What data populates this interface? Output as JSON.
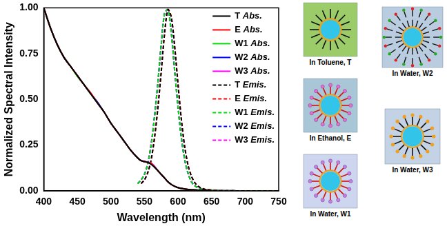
{
  "chart_data": {
    "type": "line",
    "x_label": "Wavelength (nm)",
    "y_label": "Normalized Spectral Intensity",
    "x": [
      400,
      410,
      420,
      430,
      440,
      450,
      460,
      470,
      480,
      490,
      500,
      510,
      520,
      530,
      540,
      545,
      550,
      555,
      560,
      565,
      570,
      575,
      580,
      585,
      590,
      595,
      600,
      605,
      610,
      615,
      620,
      625,
      630,
      635,
      640,
      650,
      660,
      670,
      680,
      690,
      700,
      710,
      720,
      730,
      740,
      750
    ],
    "xlim": [
      400,
      750
    ],
    "xticks": [
      400,
      450,
      500,
      550,
      600,
      650,
      700,
      750
    ],
    "ylim": [
      0,
      1
    ],
    "yticks": [
      {
        "value": 0,
        "label": "0.00"
      },
      {
        "value": 0.25,
        "label": "0.25"
      },
      {
        "value": 0.5,
        "label": "0.50"
      },
      {
        "value": 0.75,
        "label": "0.75"
      },
      {
        "value": 1,
        "label": "1.00"
      }
    ],
    "grid": false,
    "legend": "upper right",
    "series": [
      {
        "name": "T Abs.",
        "color": "#000000",
        "line_style": "solid",
        "values": [
          1.0,
          0.89,
          0.8,
          0.73,
          0.68,
          0.63,
          0.58,
          0.53,
          0.48,
          0.43,
          0.37,
          0.32,
          0.27,
          0.22,
          0.18,
          0.165,
          0.16,
          0.155,
          0.145,
          0.13,
          0.11,
          0.09,
          0.07,
          0.05,
          0.035,
          0.025,
          0.018,
          0.013,
          0.01,
          0.008,
          0.006,
          0.005,
          0.004,
          0.004,
          0.003,
          0.003,
          null,
          null,
          null,
          null,
          null,
          null,
          null,
          null,
          null,
          null
        ]
      },
      {
        "name": "E Abs.",
        "color": "#ff0000",
        "line_style": "solid",
        "values": [
          1.0,
          0.89,
          0.8,
          0.73,
          0.68,
          0.63,
          0.58,
          0.535,
          0.48,
          0.43,
          0.37,
          0.32,
          0.27,
          0.22,
          0.18,
          0.165,
          0.16,
          0.155,
          0.15,
          0.13,
          0.11,
          0.09,
          0.07,
          0.05,
          0.035,
          0.025,
          0.018,
          0.013,
          0.01,
          0.008,
          0.006,
          0.005,
          0.004,
          0.004,
          0.003,
          0.003,
          null,
          null,
          null,
          null,
          null,
          null,
          null,
          null,
          null,
          null
        ]
      },
      {
        "name": "W1 Abs.",
        "color": "#00dd00",
        "line_style": "solid",
        "values": [
          1.0,
          0.89,
          0.8,
          0.73,
          0.68,
          0.625,
          0.58,
          0.53,
          0.48,
          0.43,
          0.37,
          0.32,
          0.27,
          0.22,
          0.18,
          0.165,
          0.16,
          0.155,
          0.148,
          0.13,
          0.11,
          0.09,
          0.07,
          0.05,
          0.035,
          0.025,
          0.018,
          0.013,
          0.01,
          0.008,
          0.006,
          0.005,
          0.004,
          0.004,
          0.003,
          0.003,
          null,
          null,
          null,
          null,
          null,
          null,
          null,
          null,
          null,
          null
        ]
      },
      {
        "name": "W2 Abs.",
        "color": "#0000ff",
        "line_style": "solid",
        "values": [
          1.0,
          0.89,
          0.8,
          0.73,
          0.68,
          0.63,
          0.58,
          0.53,
          0.485,
          0.43,
          0.37,
          0.32,
          0.27,
          0.22,
          0.18,
          0.165,
          0.16,
          0.158,
          0.145,
          0.13,
          0.11,
          0.09,
          0.07,
          0.05,
          0.035,
          0.025,
          0.018,
          0.013,
          0.01,
          0.008,
          0.006,
          0.005,
          0.004,
          0.004,
          0.003,
          0.003,
          null,
          null,
          null,
          null,
          null,
          null,
          null,
          null,
          null,
          null
        ]
      },
      {
        "name": "W3 Abs.",
        "color": "#ff00ff",
        "line_style": "solid",
        "values": [
          1.0,
          0.89,
          0.8,
          0.73,
          0.68,
          0.63,
          0.58,
          0.53,
          0.48,
          0.43,
          0.37,
          0.32,
          0.27,
          0.22,
          0.18,
          0.165,
          0.163,
          0.155,
          0.152,
          0.135,
          0.11,
          0.09,
          0.07,
          0.05,
          0.035,
          0.025,
          0.018,
          0.013,
          0.01,
          0.008,
          0.006,
          0.005,
          0.004,
          0.004,
          0.003,
          0.003,
          null,
          null,
          null,
          null,
          null,
          null,
          null,
          null,
          null,
          null
        ]
      },
      {
        "name": "T Emis.",
        "color": "#000000",
        "line_style": "dashed",
        "values": [
          null,
          null,
          null,
          null,
          null,
          null,
          null,
          null,
          null,
          null,
          null,
          null,
          null,
          null,
          null,
          0.04,
          0.06,
          0.1,
          0.17,
          0.29,
          0.45,
          0.65,
          0.86,
          0.99,
          0.95,
          0.79,
          0.58,
          0.39,
          0.24,
          0.14,
          0.08,
          0.045,
          0.025,
          0.015,
          0.009,
          0.004,
          0.002,
          0.001,
          0.001,
          0,
          0,
          0,
          0,
          0,
          0,
          0
        ]
      },
      {
        "name": "E Emis.",
        "color": "#ff0000",
        "line_style": "dashed",
        "values": [
          null,
          null,
          null,
          null,
          null,
          null,
          null,
          null,
          null,
          null,
          null,
          null,
          null,
          null,
          null,
          0.04,
          0.06,
          0.1,
          0.17,
          0.29,
          0.46,
          0.65,
          0.86,
          0.99,
          0.95,
          0.79,
          0.59,
          0.39,
          0.24,
          0.14,
          0.08,
          0.045,
          0.025,
          0.015,
          0.009,
          0.004,
          0.002,
          0.001,
          0.001,
          0,
          0,
          0,
          0,
          0,
          0,
          0
        ]
      },
      {
        "name": "W1 Emis.",
        "color": "#00dd00",
        "line_style": "dashed",
        "values": [
          null,
          null,
          null,
          null,
          null,
          null,
          null,
          null,
          null,
          null,
          null,
          null,
          null,
          null,
          0.04,
          0.06,
          0.09,
          0.15,
          0.25,
          0.4,
          0.59,
          0.8,
          0.97,
          0.99,
          0.86,
          0.66,
          0.46,
          0.29,
          0.17,
          0.095,
          0.05,
          0.028,
          0.016,
          0.01,
          0.006,
          0.003,
          0.002,
          0.001,
          0.001,
          0,
          0,
          0,
          0,
          0,
          0,
          0
        ]
      },
      {
        "name": "W2 Emis.",
        "color": "#0000ff",
        "line_style": "dashed",
        "values": [
          null,
          null,
          null,
          null,
          null,
          null,
          null,
          null,
          null,
          null,
          null,
          null,
          null,
          null,
          0.04,
          0.06,
          0.09,
          0.15,
          0.25,
          0.41,
          0.59,
          0.8,
          0.97,
          0.99,
          0.87,
          0.66,
          0.46,
          0.29,
          0.17,
          0.095,
          0.05,
          0.028,
          0.016,
          0.01,
          0.006,
          0.003,
          0.002,
          0.001,
          0.001,
          0,
          0,
          0,
          0,
          0,
          0,
          0
        ]
      },
      {
        "name": "W3 Emis.",
        "color": "#ff00ff",
        "line_style": "dashed",
        "values": [
          null,
          null,
          null,
          null,
          null,
          null,
          null,
          null,
          null,
          null,
          null,
          null,
          null,
          null,
          0.04,
          0.06,
          0.09,
          0.15,
          0.26,
          0.4,
          0.59,
          0.8,
          0.97,
          0.99,
          0.86,
          0.65,
          0.46,
          0.29,
          0.17,
          0.095,
          0.05,
          0.028,
          0.016,
          0.01,
          0.006,
          0.003,
          0.002,
          0.001,
          0.001,
          0,
          0,
          0,
          0,
          0,
          0,
          0
        ]
      }
    ]
  },
  "schematic": {
    "panels": [
      {
        "label": "In Toluene, T"
      },
      {
        "label": "In Ethanol, E"
      },
      {
        "label": "In Water, W1"
      },
      {
        "label": "In Water, W2"
      },
      {
        "label": "In Water, W3"
      }
    ]
  }
}
